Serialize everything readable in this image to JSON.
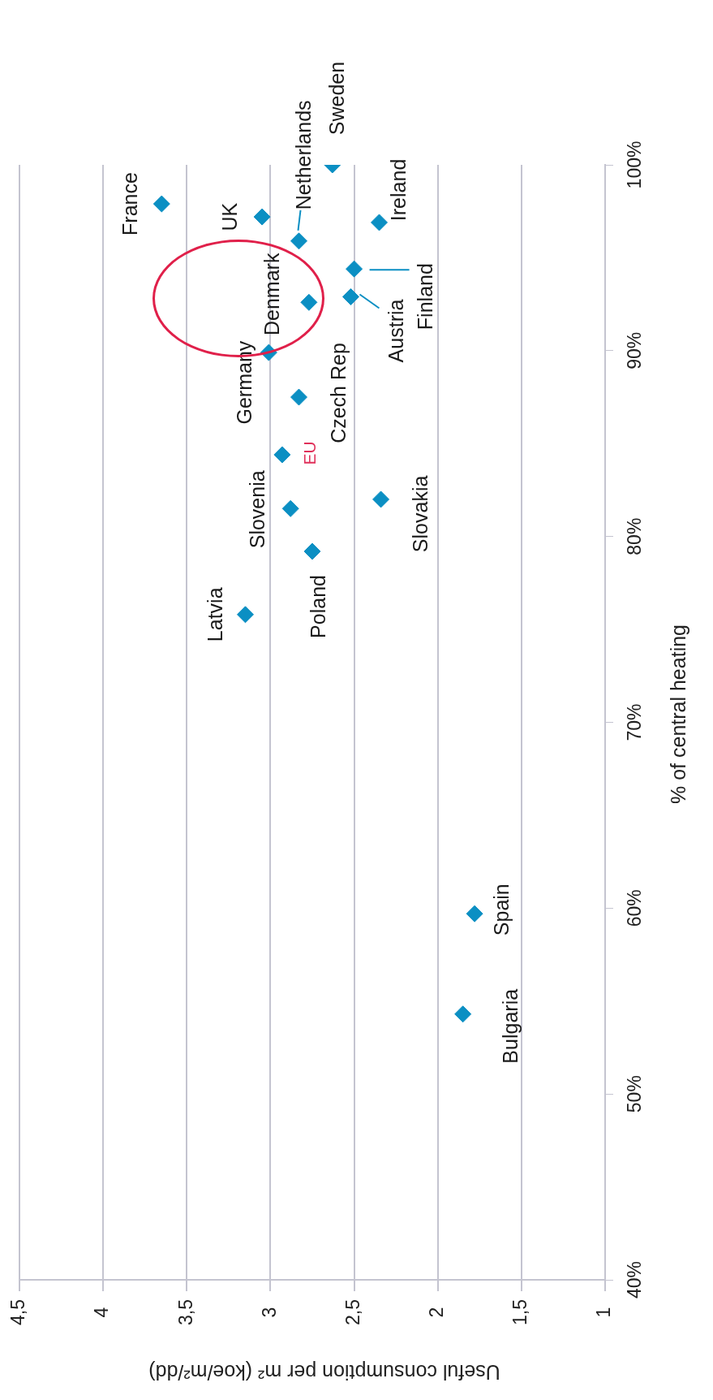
{
  "chart_data": {
    "type": "scatter",
    "xlabel": "Useful consumption per m² (koe/m²/dd)",
    "ylabel": "% of central heating",
    "series": [
      {
        "color": "#0b8fc3",
        "x": [
          3.65,
          3.05,
          2.83,
          2.63,
          2.35,
          2.77,
          2.5,
          2.52,
          3.01,
          2.83,
          2.93,
          2.88,
          2.34,
          2.75,
          3.15,
          1.78,
          1.85
        ],
        "values": [
          97.9,
          97.2,
          95.9,
          100,
          96.9,
          92.6,
          94.4,
          92.9,
          89.9,
          87.5,
          84.4,
          81.5,
          82.0,
          79.2,
          75.8,
          59.7,
          54.3
        ]
      }
    ],
    "xlim": [
      4.5,
      1
    ],
    "xticks": [
      {
        "value": 4.5,
        "label": "4,5"
      },
      {
        "value": 4,
        "label": "4"
      },
      {
        "value": 3.5,
        "label": "3,5"
      },
      {
        "value": 3,
        "label": "3"
      },
      {
        "value": 2.5,
        "label": "2,5"
      },
      {
        "value": 2,
        "label": "2"
      },
      {
        "value": 1.5,
        "label": "1,5"
      },
      {
        "value": 1,
        "label": "1"
      }
    ],
    "ylim": [
      40,
      100
    ],
    "yticks": [
      {
        "value": 40,
        "label": "40%"
      },
      {
        "value": 50,
        "label": "50%"
      },
      {
        "value": 60,
        "label": "60%"
      },
      {
        "value": 70,
        "label": "70%"
      },
      {
        "value": 80,
        "label": "80%"
      },
      {
        "value": 90,
        "label": "90%"
      },
      {
        "value": 100,
        "label": "100%"
      }
    ],
    "grid": "x",
    "legend": false,
    "marker": "diamond",
    "annotations": [
      {
        "text": "France",
        "x": 3.65,
        "y": 97.9
      },
      {
        "text": "UK",
        "x": 3.05,
        "y": 97.2
      },
      {
        "text": "Netherlands",
        "x": 2.83,
        "y": 95.9
      },
      {
        "text": "Sweden",
        "x": 2.63,
        "y": 100
      },
      {
        "text": "Ireland",
        "x": 2.35,
        "y": 96.9
      },
      {
        "text": "Denmark",
        "x": 2.77,
        "y": 92.6
      },
      {
        "text": "Finland",
        "x": 2.5,
        "y": 94.4
      },
      {
        "text": "Austria",
        "x": 2.52,
        "y": 92.9
      },
      {
        "text": "Germany",
        "x": 3.01,
        "y": 89.9
      },
      {
        "text": "Czech Rep",
        "x": 2.83,
        "y": 87.5
      },
      {
        "text": "EU",
        "x": 2.93,
        "y": 84.4
      },
      {
        "text": "Slovenia",
        "x": 2.88,
        "y": 81.5
      },
      {
        "text": "Slovakia",
        "x": 2.34,
        "y": 82.0
      },
      {
        "text": "Poland",
        "x": 2.75,
        "y": 79.2
      },
      {
        "text": "Latvia",
        "x": 3.15,
        "y": 75.8
      },
      {
        "text": "Spain",
        "x": 1.78,
        "y": 59.7
      },
      {
        "text": "Bulgaria",
        "x": 1.85,
        "y": 54.3
      }
    ]
  }
}
